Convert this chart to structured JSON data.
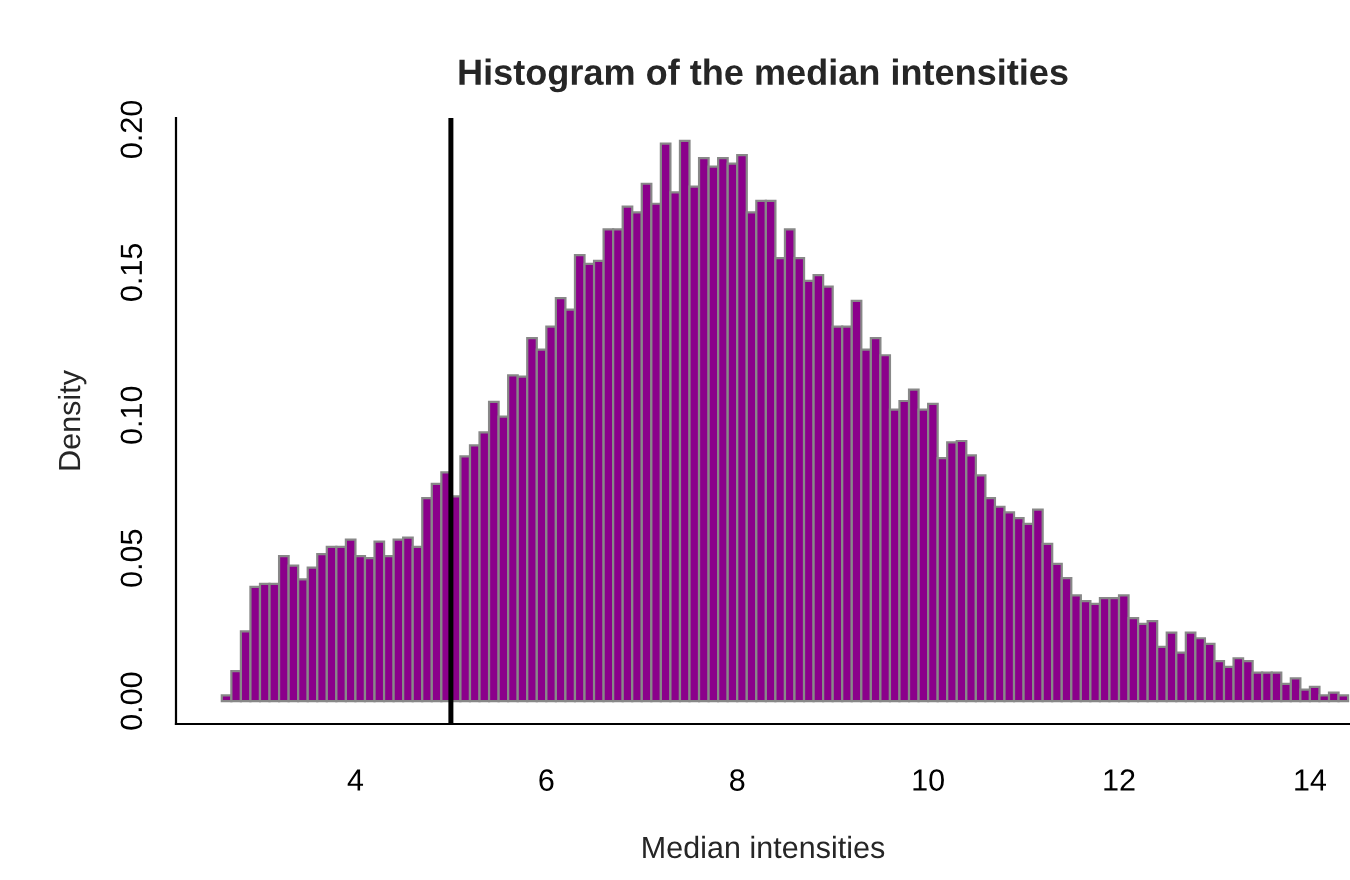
{
  "chart_data": {
    "type": "histogram",
    "title": "Histogram of the median intensities",
    "xlabel": "Median intensities",
    "ylabel": "Density",
    "bins": [
      2.6,
      2.7,
      2.8,
      2.9,
      3.0,
      3.1,
      3.2,
      3.3,
      3.4,
      3.5,
      3.6,
      3.7,
      3.8,
      3.9,
      4.0,
      4.1,
      4.2,
      4.3,
      4.4,
      4.5,
      4.6,
      4.7,
      4.8,
      4.9,
      5.0,
      5.1,
      5.2,
      5.3,
      5.4,
      5.5,
      5.6,
      5.7,
      5.8,
      5.9,
      6.0,
      6.1,
      6.2,
      6.3,
      6.4,
      6.5,
      6.6,
      6.7,
      6.8,
      6.9,
      7.0,
      7.1,
      7.2,
      7.3,
      7.4,
      7.5,
      7.6,
      7.7,
      7.8,
      7.9,
      8.0,
      8.1,
      8.2,
      8.3,
      8.4,
      8.5,
      8.6,
      8.7,
      8.8,
      8.9,
      9.0,
      9.1,
      9.2,
      9.3,
      9.4,
      9.5,
      9.6,
      9.7,
      9.8,
      9.9,
      10.0,
      10.1,
      10.2,
      10.3,
      10.4,
      10.5,
      10.6,
      10.7,
      10.8,
      10.9,
      11.0,
      11.1,
      11.2,
      11.3,
      11.4,
      11.5,
      11.6,
      11.7,
      11.8,
      11.9,
      12.0,
      12.1,
      12.2,
      12.3,
      12.4,
      12.5,
      12.6,
      12.7,
      12.8,
      12.9,
      13.0,
      13.1,
      13.2,
      13.3,
      13.4,
      13.5,
      13.6,
      13.7,
      13.8,
      13.9,
      14.0,
      14.1,
      14.2,
      14.3,
      14.4
    ],
    "values": [
      0.002,
      0.0105,
      0.0244,
      0.04,
      0.041,
      0.041,
      0.0507,
      0.0474,
      0.0426,
      0.0467,
      0.0514,
      0.054,
      0.054,
      0.0565,
      0.0507,
      0.05,
      0.0558,
      0.0507,
      0.0565,
      0.0572,
      0.054,
      0.071,
      0.076,
      0.08,
      0.0716,
      0.0856,
      0.0895,
      0.094,
      0.1047,
      0.0995,
      0.114,
      0.1135,
      0.127,
      0.123,
      0.131,
      0.141,
      0.137,
      0.156,
      0.153,
      0.154,
      0.165,
      0.165,
      0.173,
      0.171,
      0.181,
      0.174,
      0.195,
      0.178,
      0.196,
      0.18,
      0.19,
      0.187,
      0.19,
      0.188,
      0.191,
      0.171,
      0.175,
      0.175,
      0.155,
      0.165,
      0.155,
      0.147,
      0.149,
      0.145,
      0.131,
      0.131,
      0.14,
      0.123,
      0.127,
      0.121,
      0.102,
      0.105,
      0.109,
      0.102,
      0.104,
      0.085,
      0.0905,
      0.091,
      0.086,
      0.079,
      0.071,
      0.068,
      0.066,
      0.064,
      0.062,
      0.067,
      0.055,
      0.048,
      0.043,
      0.037,
      0.035,
      0.034,
      0.036,
      0.036,
      0.037,
      0.029,
      0.027,
      0.028,
      0.019,
      0.024,
      0.017,
      0.024,
      0.022,
      0.02,
      0.014,
      0.012,
      0.015,
      0.014,
      0.01,
      0.01,
      0.01,
      0.006,
      0.008,
      0.004,
      0.005,
      0.002,
      0.003,
      0.002
    ],
    "color": "#8b008b",
    "xlim": [
      2.12,
      14.42
    ],
    "xticks": [
      4,
      6,
      8,
      10,
      12,
      14
    ],
    "ylim": [
      -0.008,
      0.204
    ],
    "yticks": [
      {
        "value": 0,
        "label": "0.00"
      },
      {
        "value": 0.05,
        "label": "0.05"
      },
      {
        "value": 0.1,
        "label": "0.10"
      },
      {
        "value": 0.15,
        "label": "0.15"
      },
      {
        "value": 0.2,
        "label": "0.20"
      }
    ],
    "ref_lines": [
      {
        "axis": "x",
        "value": 5,
        "color": "#000000"
      }
    ],
    "grid": false,
    "legend": false
  }
}
